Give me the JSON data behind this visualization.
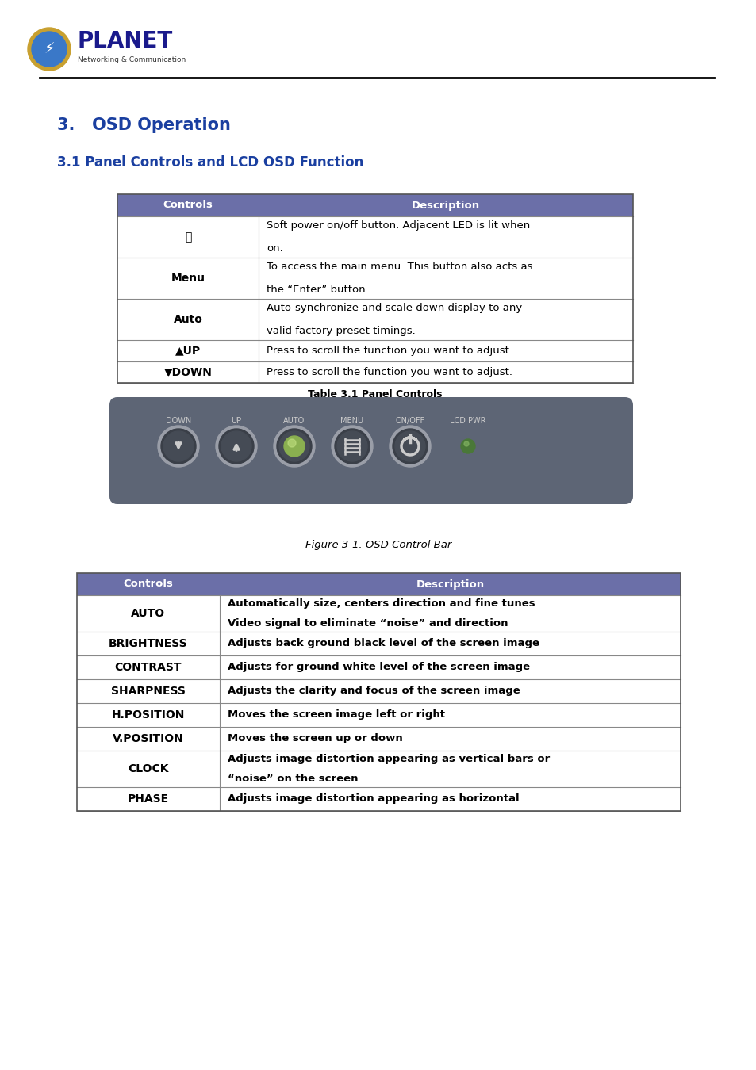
{
  "page_bg": "#ffffff",
  "section_title": "3.   OSD Operation",
  "section_title_color": "#1a3fa0",
  "subsection_title": "3.1 Panel Controls and LCD OSD Function",
  "subsection_title_color": "#1a3fa0",
  "table1_header_bg": "#6b6fa8",
  "table1_header_fg": "#ffffff",
  "table1_col1_header": "Controls",
  "table1_col2_header": "Description",
  "table1_rows": [
    [
      "⏻",
      "Soft power on/off button. Adjacent LED is lit when\non."
    ],
    [
      "Menu",
      "To access the main menu. This button also acts as\nthe “Enter” button."
    ],
    [
      "Auto",
      "Auto-synchronize and scale down display to any\nvalid factory preset timings."
    ],
    [
      "▲UP",
      "Press to scroll the function you want to adjust."
    ],
    [
      "▼DOWN",
      "Press to scroll the function you want to adjust."
    ]
  ],
  "table1_caption": "Table 3.1 Panel Controls",
  "panel_bg": "#5d6575",
  "panel_labels": [
    "DOWN",
    "UP",
    "AUTO",
    "MENU",
    "ON/OFF",
    "LCD PWR"
  ],
  "figure_caption": "Figure 3-1. OSD Control Bar",
  "table2_header_bg": "#6b6fa8",
  "table2_header_fg": "#ffffff",
  "table2_col1_header": "Controls",
  "table2_col2_header": "Description",
  "table2_rows": [
    [
      "AUTO",
      "Automatically size, centers direction and fine tunes\nVideo signal to eliminate “noise” and direction"
    ],
    [
      "BRIGHTNESS",
      "Adjusts back ground black level of the screen image"
    ],
    [
      "CONTRAST",
      "Adjusts for ground white level of the screen image"
    ],
    [
      "SHARPNESS",
      "Adjusts the clarity and focus of the screen image"
    ],
    [
      "H.POSITION",
      "Moves the screen image left or right"
    ],
    [
      "V.POSITION",
      "Moves the screen up or down"
    ],
    [
      "CLOCK",
      "Adjusts image distortion appearing as vertical bars or\n“noise” on the screen"
    ],
    [
      "PHASE",
      "Adjusts image distortion appearing as horizontal"
    ]
  ]
}
